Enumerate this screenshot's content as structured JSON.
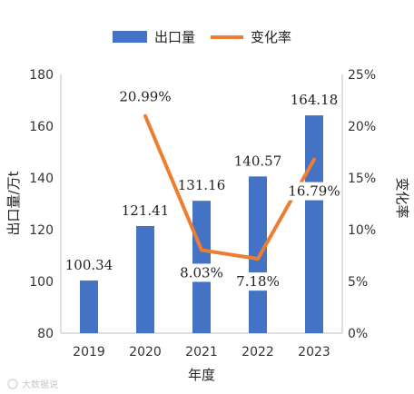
{
  "chart_data": {
    "type": "bar",
    "categories": [
      "2019",
      "2020",
      "2021",
      "2022",
      "2023"
    ],
    "series": [
      {
        "name": "出口量",
        "type": "bar",
        "axis": "left",
        "values": [
          100.34,
          121.41,
          131.16,
          140.57,
          164.18
        ],
        "labels": [
          "100.34",
          "121.41",
          "131.16",
          "140.57",
          "164.18"
        ],
        "color": "#4472C4"
      },
      {
        "name": "变化率",
        "type": "line",
        "axis": "right",
        "values": [
          null,
          20.99,
          8.03,
          7.18,
          16.79
        ],
        "labels": [
          "",
          "20.99%",
          "8.03%",
          "7.18%",
          "16.79%"
        ],
        "color": "#ED7D31"
      }
    ],
    "xlabel": "年度",
    "ylabel": "出口量/万t",
    "y2label": "变化率",
    "ylim": [
      80,
      180
    ],
    "yticks": [
      "80",
      "100",
      "120",
      "140",
      "160",
      "180"
    ],
    "y2lim": [
      0,
      25
    ],
    "y2ticks": [
      "0%",
      "5%",
      "10%",
      "15%",
      "20%",
      "25%"
    ],
    "legend": "top-center",
    "grid": false
  },
  "watermark": "大数据说"
}
